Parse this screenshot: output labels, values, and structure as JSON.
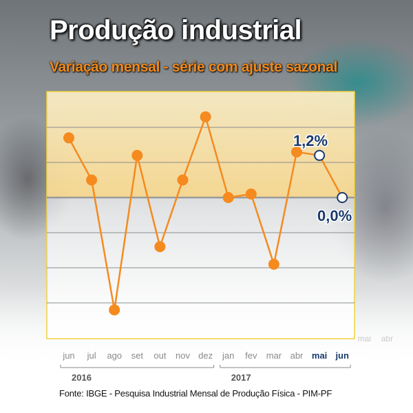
{
  "header": {
    "title": "Produção industrial",
    "subtitle": "Variação mensal - série com ajuste sazonal"
  },
  "footer": {
    "source": "Fonte: IBGE - Pesquisa Industrial Mensal de Produção Física - PIM-PF"
  },
  "colors": {
    "line": "#f58a1f",
    "highlight": "#1a3a6b",
    "tick": "#8a8a8a",
    "frame": "#f2d23a"
  },
  "chart_data": {
    "type": "line",
    "categories": [
      "jun",
      "jul",
      "ago",
      "set",
      "out",
      "nov",
      "dez",
      "jan",
      "fev",
      "mar",
      "abr",
      "mai",
      "jun"
    ],
    "highlighted_categories": [
      "mai",
      "jun"
    ],
    "faded_categories": [
      "mai",
      "abr"
    ],
    "year_groups": [
      {
        "label": "2016",
        "first": "jun",
        "last": "dez"
      },
      {
        "label": "2017",
        "first": "jan",
        "last": "jun"
      }
    ],
    "series": [
      {
        "values": [
          1.7,
          0.5,
          -3.2,
          1.2,
          -1.4,
          0.5,
          2.3,
          0.0,
          0.1,
          -1.9,
          1.3,
          1.2,
          0.0
        ]
      }
    ],
    "annotations": [
      {
        "category_index": 11,
        "label": "1,2%"
      },
      {
        "category_index": 12,
        "label": "0,0%"
      }
    ],
    "zero_line": true,
    "grid": true
  }
}
